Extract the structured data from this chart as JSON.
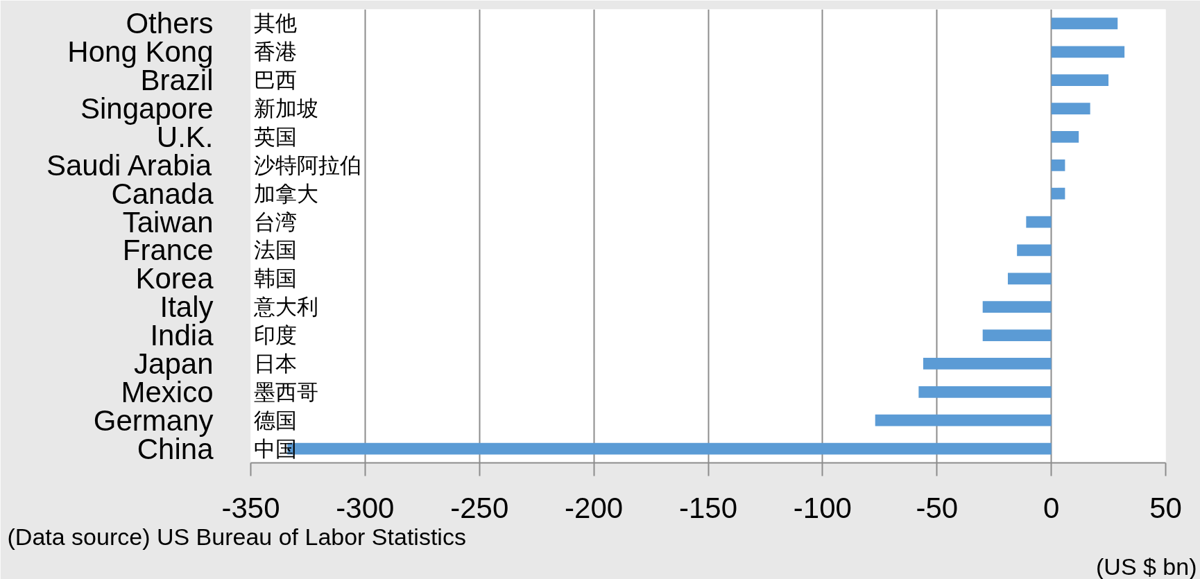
{
  "chart_data": {
    "type": "bar",
    "orientation": "horizontal",
    "categories": [
      "Others",
      "Hong Kong",
      "Brazil",
      "Singapore",
      "U.K.",
      "Saudi Arabia",
      "Canada",
      "Taiwan",
      "France",
      "Korea",
      "Italy",
      "India",
      "Japan",
      "Mexico",
      "Germany",
      "China"
    ],
    "y2_categories": [
      "其他",
      "香港",
      "巴西",
      "新加坡",
      "英国",
      "沙特阿拉伯",
      "加拿大",
      "台湾",
      "法国",
      "韩国",
      "意大利",
      "印度",
      "日本",
      "墨西哥",
      "德国",
      "中国"
    ],
    "values": [
      29,
      32,
      25,
      17,
      12,
      6,
      6,
      -11,
      -15,
      -19,
      -30,
      -30,
      -56,
      -58,
      -77,
      -334
    ],
    "color": "#5b9bd5",
    "xlim": [
      -350,
      50
    ],
    "xticks": [
      -350,
      -300,
      -250,
      -200,
      -150,
      -100,
      -50,
      0,
      50
    ],
    "grid": "x",
    "xlabel": "(US $ bn)",
    "annotations": [
      "(Data source) US Bureau of Labor Statistics"
    ]
  }
}
